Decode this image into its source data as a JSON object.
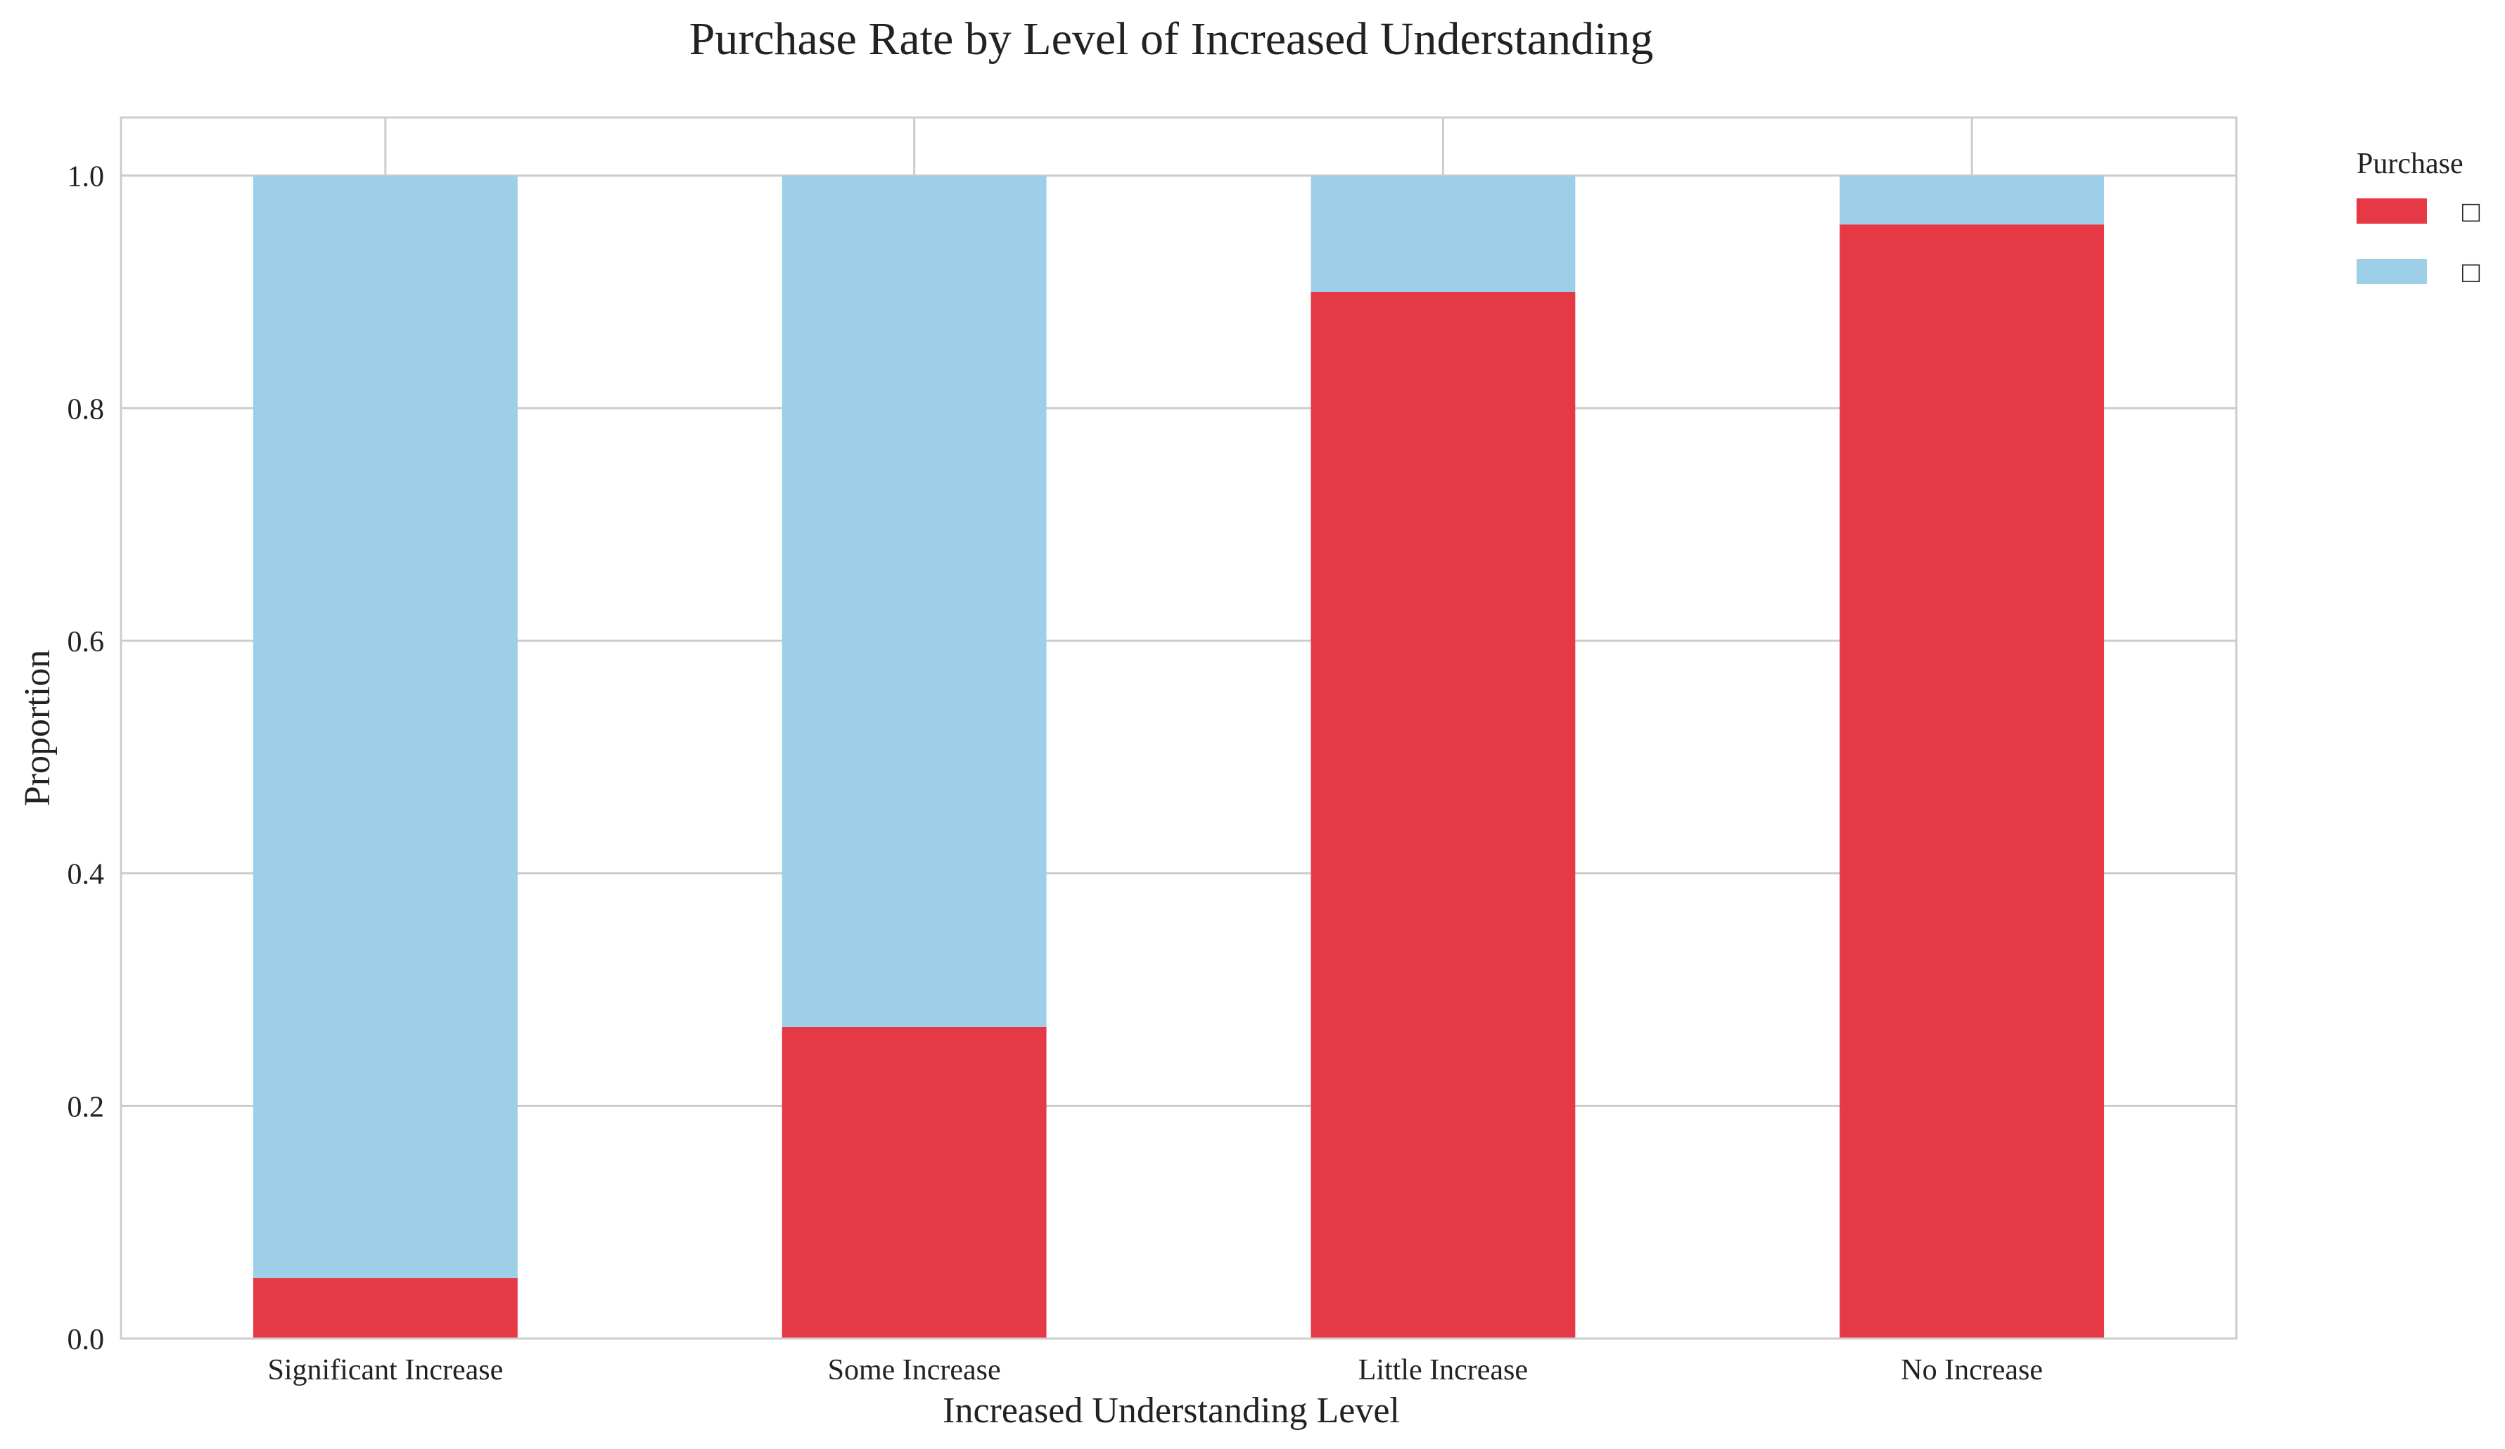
{
  "chart_data": {
    "type": "bar",
    "stacked": true,
    "title": "Purchase Rate by Level of Increased Understanding",
    "xlabel": "Increased Understanding Level",
    "ylabel": "Proportion",
    "categories": [
      "Significant Increase",
      "Some Increase",
      "Little Increase",
      "No Increase"
    ],
    "ylim": [
      0,
      1.05
    ],
    "yticks": [
      0.0,
      0.2,
      0.4,
      0.6,
      0.8,
      1.0
    ],
    "ytick_labels": [
      "0.0",
      "0.2",
      "0.4",
      "0.6",
      "0.8",
      "1.0"
    ],
    "grid": true,
    "legend": {
      "title": "Purchase",
      "placement": "outside-top-right"
    },
    "series": [
      {
        "name": "□",
        "color": "#e63946",
        "values": [
          0.052,
          0.268,
          0.9,
          0.958
        ]
      },
      {
        "name": "□",
        "color": "#9dd0e8",
        "values": [
          0.948,
          0.732,
          0.1,
          0.042
        ]
      }
    ]
  }
}
